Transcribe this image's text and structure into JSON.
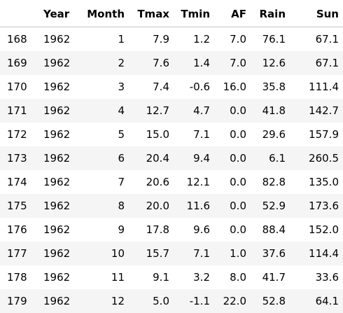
{
  "table": {
    "columns": [
      "",
      "Year",
      "Month",
      "Tmax",
      "Tmin",
      "AF",
      "Rain",
      "Sun"
    ],
    "rows": [
      {
        "index": "168",
        "year": "1962",
        "month": "1",
        "tmax": "7.9",
        "tmin": "1.2",
        "af": "7.0",
        "rain": "76.1",
        "sun": "67.1"
      },
      {
        "index": "169",
        "year": "1962",
        "month": "2",
        "tmax": "7.6",
        "tmin": "1.4",
        "af": "7.0",
        "rain": "12.6",
        "sun": "67.1"
      },
      {
        "index": "170",
        "year": "1962",
        "month": "3",
        "tmax": "7.4",
        "tmin": "-0.6",
        "af": "16.0",
        "rain": "35.8",
        "sun": "111.4"
      },
      {
        "index": "171",
        "year": "1962",
        "month": "4",
        "tmax": "12.7",
        "tmin": "4.7",
        "af": "0.0",
        "rain": "41.8",
        "sun": "142.7"
      },
      {
        "index": "172",
        "year": "1962",
        "month": "5",
        "tmax": "15.0",
        "tmin": "7.1",
        "af": "0.0",
        "rain": "29.6",
        "sun": "157.9"
      },
      {
        "index": "173",
        "year": "1962",
        "month": "6",
        "tmax": "20.4",
        "tmin": "9.4",
        "af": "0.0",
        "rain": "6.1",
        "sun": "260.5"
      },
      {
        "index": "174",
        "year": "1962",
        "month": "7",
        "tmax": "20.6",
        "tmin": "12.1",
        "af": "0.0",
        "rain": "82.8",
        "sun": "135.0"
      },
      {
        "index": "175",
        "year": "1962",
        "month": "8",
        "tmax": "20.0",
        "tmin": "11.6",
        "af": "0.0",
        "rain": "52.9",
        "sun": "173.6"
      },
      {
        "index": "176",
        "year": "1962",
        "month": "9",
        "tmax": "17.8",
        "tmin": "9.6",
        "af": "0.0",
        "rain": "88.4",
        "sun": "152.0"
      },
      {
        "index": "177",
        "year": "1962",
        "month": "10",
        "tmax": "15.7",
        "tmin": "7.1",
        "af": "1.0",
        "rain": "37.6",
        "sun": "114.4"
      },
      {
        "index": "178",
        "year": "1962",
        "month": "11",
        "tmax": "9.1",
        "tmin": "3.2",
        "af": "8.0",
        "rain": "41.7",
        "sun": "33.6"
      },
      {
        "index": "179",
        "year": "1962",
        "month": "12",
        "tmax": "5.0",
        "tmin": "-1.1",
        "af": "22.0",
        "rain": "52.8",
        "sun": "64.1"
      }
    ]
  },
  "colors": {
    "row_stripe": "#f5f5f5",
    "row_plain": "#ffffff",
    "header_rule": "#c8c8c8",
    "text": "#000000"
  }
}
